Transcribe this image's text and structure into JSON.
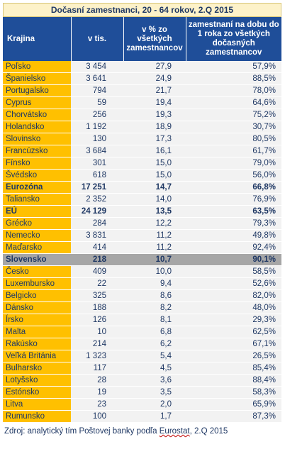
{
  "title": "Dočasní zamestnanci, 20 - 64 rokov, 2.Q 2015",
  "headers": {
    "country": "Krajina",
    "thousands": "v tis.",
    "pct_all": "v % zo všetkých zamestnancov",
    "pct_short": "zamestnaní na dobu do 1 roka zo všetkých dočasných zamestnancov"
  },
  "rows": [
    {
      "country": "Poľsko",
      "thousands": "3 454",
      "pct_all": "27,9",
      "pct_short": "57,9%",
      "style": ""
    },
    {
      "country": "Španielsko",
      "thousands": "3 641",
      "pct_all": "24,9",
      "pct_short": "88,5%",
      "style": ""
    },
    {
      "country": "Portugalsko",
      "thousands": "794",
      "pct_all": "21,7",
      "pct_short": "78,0%",
      "style": ""
    },
    {
      "country": "Cyprus",
      "thousands": "59",
      "pct_all": "19,4",
      "pct_short": "64,6%",
      "style": ""
    },
    {
      "country": "Chorvátsko",
      "thousands": "256",
      "pct_all": "19,3",
      "pct_short": "75,2%",
      "style": ""
    },
    {
      "country": "Holandsko",
      "thousands": "1 192",
      "pct_all": "18,9",
      "pct_short": "30,7%",
      "style": ""
    },
    {
      "country": "Slovinsko",
      "thousands": "130",
      "pct_all": "17,3",
      "pct_short": "80,5%",
      "style": ""
    },
    {
      "country": "Francúzsko",
      "thousands": "3 684",
      "pct_all": "16,1",
      "pct_short": "61,7%",
      "style": ""
    },
    {
      "country": "Fínsko",
      "thousands": "301",
      "pct_all": "15,0",
      "pct_short": "79,0%",
      "style": ""
    },
    {
      "country": "Švédsko",
      "thousands": "618",
      "pct_all": "15,0",
      "pct_short": "56,0%",
      "style": ""
    },
    {
      "country": "Eurozóna",
      "thousands": "17 251",
      "pct_all": "14,7",
      "pct_short": "66,8%",
      "style": "hl"
    },
    {
      "country": "Taliansko",
      "thousands": "2 352",
      "pct_all": "14,0",
      "pct_short": "76,9%",
      "style": ""
    },
    {
      "country": "EÚ",
      "thousands": "24 129",
      "pct_all": "13,5",
      "pct_short": "63,5%",
      "style": "hl"
    },
    {
      "country": "Grécko",
      "thousands": "284",
      "pct_all": "12,2",
      "pct_short": "79,3%",
      "style": ""
    },
    {
      "country": "Nemecko",
      "thousands": "3 831",
      "pct_all": "11,2",
      "pct_short": "49,8%",
      "style": ""
    },
    {
      "country": "Maďarsko",
      "thousands": "414",
      "pct_all": "11,2",
      "pct_short": "92,4%",
      "style": ""
    },
    {
      "country": "Slovensko",
      "thousands": "218",
      "pct_all": "10,7",
      "pct_short": "90,1%",
      "style": "sk"
    },
    {
      "country": "Česko",
      "thousands": "409",
      "pct_all": "10,0",
      "pct_short": "58,5%",
      "style": ""
    },
    {
      "country": "Luxembursko",
      "thousands": "22",
      "pct_all": "9,4",
      "pct_short": "52,6%",
      "style": ""
    },
    {
      "country": "Belgicko",
      "thousands": "325",
      "pct_all": "8,6",
      "pct_short": "82,0%",
      "style": ""
    },
    {
      "country": "Dánsko",
      "thousands": "188",
      "pct_all": "8,2",
      "pct_short": "48,0%",
      "style": ""
    },
    {
      "country": "Írsko",
      "thousands": "126",
      "pct_all": "8,1",
      "pct_short": "29,3%",
      "style": ""
    },
    {
      "country": "Malta",
      "thousands": "10",
      "pct_all": "6,8",
      "pct_short": "62,5%",
      "style": ""
    },
    {
      "country": "Rakúsko",
      "thousands": "214",
      "pct_all": "6,2",
      "pct_short": "67,1%",
      "style": ""
    },
    {
      "country": "Veľká Británia",
      "thousands": "1 323",
      "pct_all": "5,4",
      "pct_short": "26,5%",
      "style": ""
    },
    {
      "country": "Bulharsko",
      "thousands": "117",
      "pct_all": "4,5",
      "pct_short": "85,4%",
      "style": ""
    },
    {
      "country": "Lotyšsko",
      "thousands": "28",
      "pct_all": "3,6",
      "pct_short": "88,4%",
      "style": ""
    },
    {
      "country": "Estónsko",
      "thousands": "19",
      "pct_all": "3,5",
      "pct_short": "58,3%",
      "style": ""
    },
    {
      "country": "Litva",
      "thousands": "23",
      "pct_all": "2,0",
      "pct_short": "65,9%",
      "style": ""
    },
    {
      "country": "Rumunsko",
      "thousands": "100",
      "pct_all": "1,7",
      "pct_short": "87,3%",
      "style": ""
    }
  ],
  "source": {
    "prefix": "Zdroj: analytický tím Poštovej banky podľa ",
    "underlined": "Eurostat",
    "suffix": ", 2.Q 2015"
  },
  "colors": {
    "header_bg": "#1f4e99",
    "country_bg": "#ffc000",
    "slovakia_bg": "#a6a6a6",
    "title_bg": "#fdf2c9"
  }
}
